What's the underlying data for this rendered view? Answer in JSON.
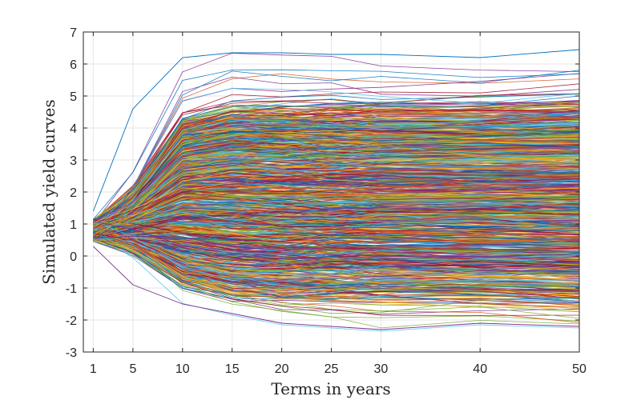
{
  "chart_data": {
    "type": "line",
    "title": "",
    "xlabel": "Terms in years",
    "ylabel": "Simulated yield curves",
    "x": [
      1,
      5,
      10,
      15,
      20,
      25,
      30,
      40,
      50
    ],
    "xticks": [
      1,
      5,
      10,
      15,
      20,
      25,
      30,
      40,
      50
    ],
    "yticks": [
      -3,
      -2,
      -1,
      0,
      1,
      2,
      3,
      4,
      5,
      6,
      7
    ],
    "xlim": [
      0,
      50
    ],
    "ylim": [
      -3,
      7
    ],
    "grid": true,
    "legend": "none",
    "series_count_approx": 1000,
    "series_shape": "Dense bundle of simulated yield curves: all curves start near 0.8 at the 1-year term and fan out by the 10-year term; the bulk lies between about -1.2 and 4.5 from 10 to 50 years, with extremes reaching about 6.4 at the top and -2.3 at the bottom.",
    "envelope": {
      "upper": [
        1.4,
        4.6,
        6.2,
        6.35,
        6.35,
        6.3,
        6.3,
        6.2,
        6.45
      ],
      "lower": [
        0.3,
        -0.9,
        -1.5,
        -1.8,
        -2.1,
        -2.2,
        -2.3,
        -2.1,
        -2.2
      ],
      "dense_upper": [
        1.2,
        3.4,
        4.5,
        4.5,
        4.5,
        4.5,
        4.5,
        4.5,
        4.6
      ],
      "dense_lower": [
        0.4,
        -0.3,
        -0.9,
        -1.1,
        -1.2,
        -1.2,
        -1.2,
        -1.2,
        -1.3
      ]
    },
    "colors": [
      "#0072BD",
      "#D95319",
      "#EDB120",
      "#7E2F8E",
      "#77AC30",
      "#4DBEEE",
      "#A2142F"
    ]
  }
}
